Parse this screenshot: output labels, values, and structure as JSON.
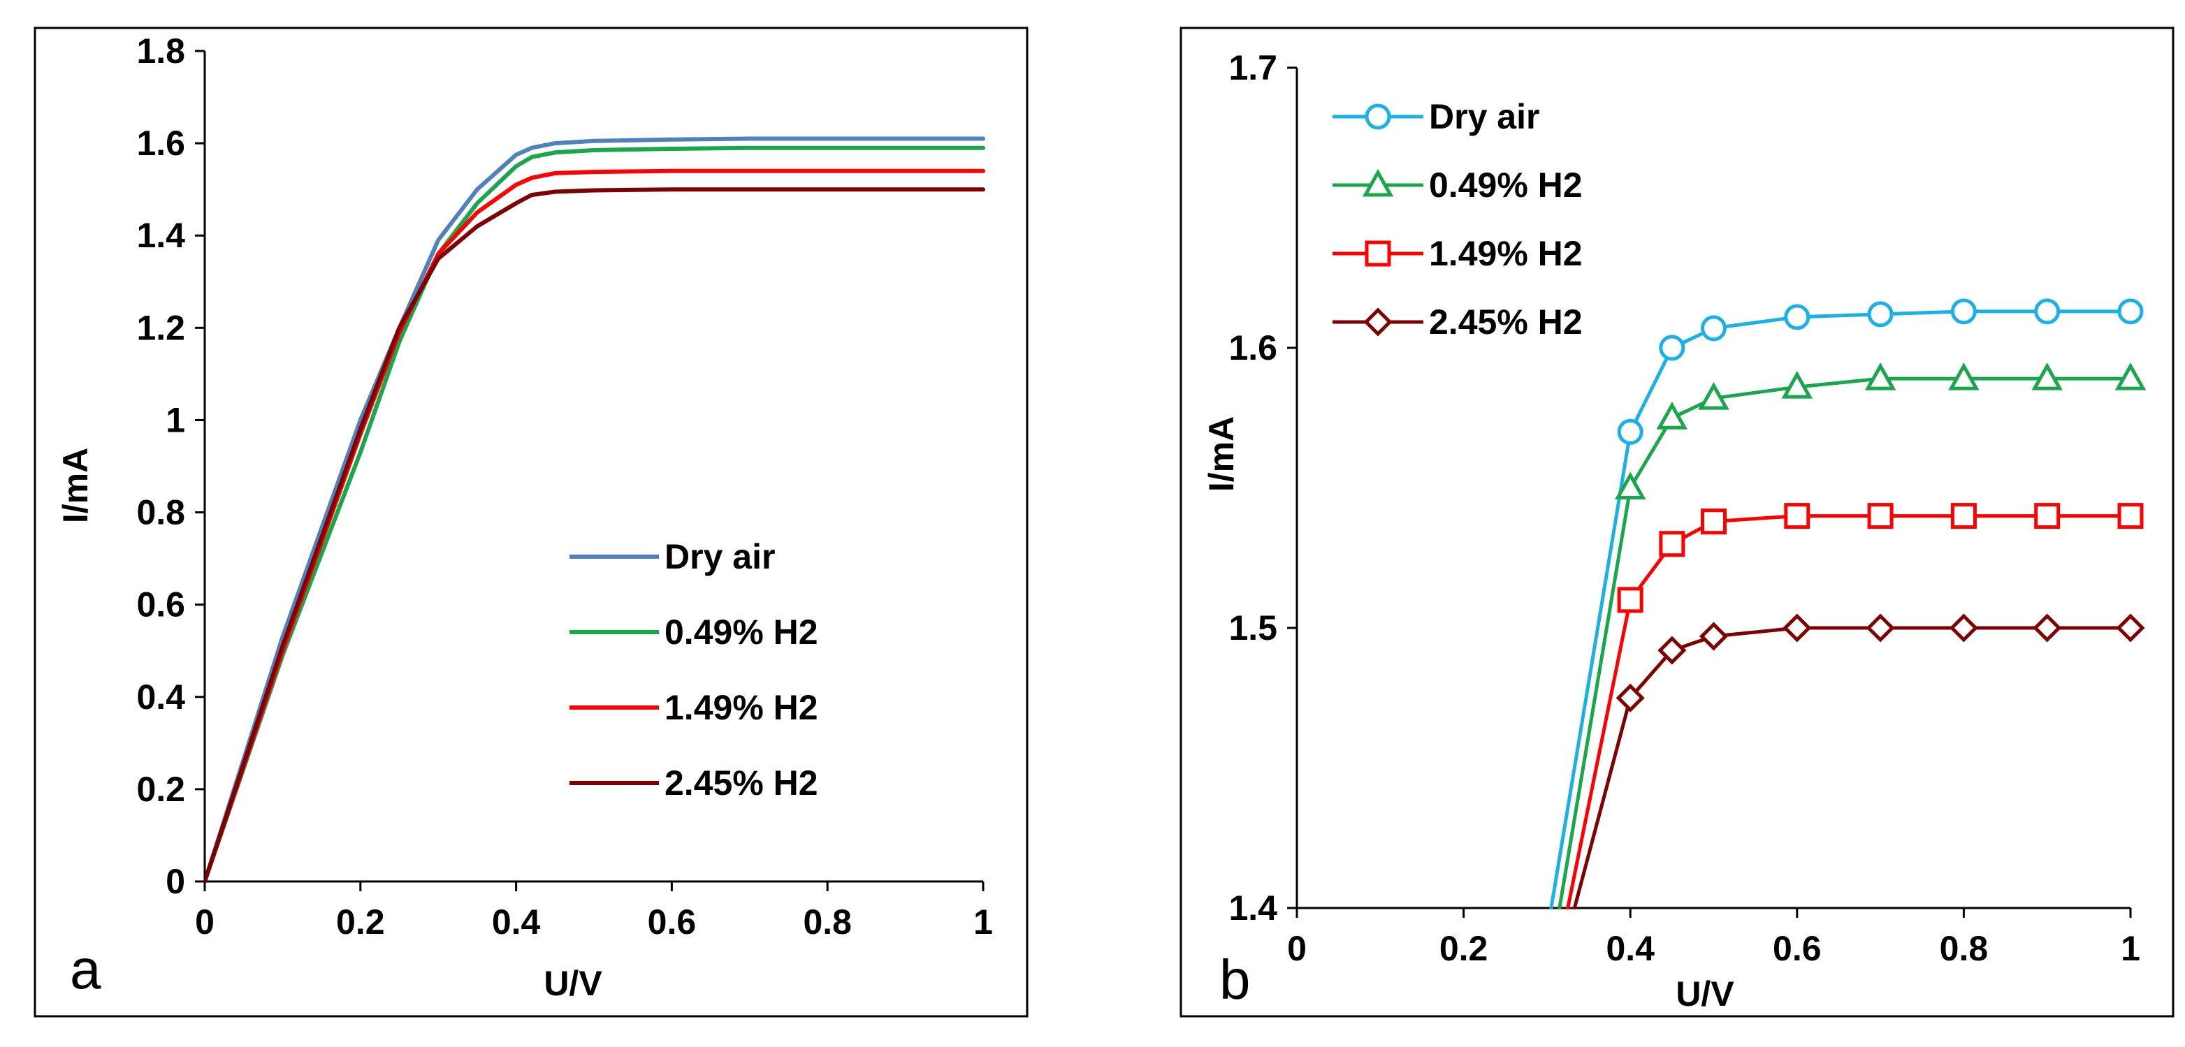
{
  "chart_data": [
    {
      "type": "line",
      "panel_label": "a",
      "xlabel": "U/V",
      "ylabel": "I/mA",
      "xlim": [
        0,
        1
      ],
      "ylim": [
        0,
        1.8
      ],
      "xticks": [
        "0",
        "0.2",
        "0.4",
        "0.6",
        "0.8",
        "1"
      ],
      "yticks": [
        "0",
        "0.2",
        "0.4",
        "0.6",
        "0.8",
        "1",
        "1.2",
        "1.4",
        "1.6",
        "1.8"
      ],
      "legend_position": "lower-right",
      "series": [
        {
          "name": "Dry  air",
          "color": "#4f81bd",
          "x": [
            0,
            0.1,
            0.2,
            0.25,
            0.3,
            0.35,
            0.4,
            0.42,
            0.45,
            0.5,
            0.6,
            0.7,
            0.8,
            0.9,
            1.0
          ],
          "y": [
            0,
            0.53,
            1.0,
            1.2,
            1.39,
            1.5,
            1.575,
            1.59,
            1.6,
            1.605,
            1.608,
            1.61,
            1.61,
            1.61,
            1.61
          ]
        },
        {
          "name": "0.49% H2",
          "color": "#1aa64b",
          "x": [
            0,
            0.1,
            0.2,
            0.25,
            0.3,
            0.35,
            0.4,
            0.42,
            0.45,
            0.5,
            0.6,
            0.7,
            0.8,
            0.9,
            1.0
          ],
          "y": [
            0,
            0.49,
            0.93,
            1.17,
            1.36,
            1.47,
            1.55,
            1.57,
            1.58,
            1.585,
            1.588,
            1.59,
            1.59,
            1.59,
            1.59
          ]
        },
        {
          "name": "1.49% H2",
          "color": "#ff0000",
          "x": [
            0,
            0.1,
            0.2,
            0.25,
            0.3,
            0.35,
            0.4,
            0.42,
            0.45,
            0.5,
            0.6,
            0.7,
            0.8,
            0.9,
            1.0
          ],
          "y": [
            0,
            0.5,
            0.97,
            1.19,
            1.36,
            1.45,
            1.51,
            1.525,
            1.535,
            1.538,
            1.54,
            1.54,
            1.54,
            1.54,
            1.54
          ]
        },
        {
          "name": "2.45% H2",
          "color": "#7f0000",
          "x": [
            0,
            0.1,
            0.2,
            0.25,
            0.3,
            0.35,
            0.4,
            0.42,
            0.45,
            0.5,
            0.6,
            0.7,
            0.8,
            0.9,
            1.0
          ],
          "y": [
            0,
            0.51,
            0.98,
            1.2,
            1.35,
            1.42,
            1.47,
            1.488,
            1.495,
            1.498,
            1.5,
            1.5,
            1.5,
            1.5,
            1.5
          ]
        }
      ]
    },
    {
      "type": "line",
      "panel_label": "b",
      "xlabel": "U/V",
      "ylabel": "I/mA",
      "xlim": [
        0,
        1
      ],
      "ylim": [
        1.4,
        1.7
      ],
      "xticks": [
        "0",
        "0.2",
        "0.4",
        "0.6",
        "0.8",
        "1"
      ],
      "yticks": [
        "1.4",
        "1.5",
        "1.6",
        "1.7"
      ],
      "legend_position": "top-left",
      "series": [
        {
          "name": "Dry air",
          "color": "#19b1e6",
          "marker": "circle",
          "x": [
            0.4,
            0.45,
            0.5,
            0.6,
            0.7,
            0.8,
            0.9,
            1.0
          ],
          "y": [
            1.57,
            1.6,
            1.607,
            1.611,
            1.612,
            1.613,
            1.613,
            1.613
          ],
          "entry": [
            0.305,
            1.4
          ]
        },
        {
          "name": "0.49% H2",
          "color": "#1aa64b",
          "marker": "triangle",
          "x": [
            0.4,
            0.45,
            0.5,
            0.6,
            0.7,
            0.8,
            0.9,
            1.0
          ],
          "y": [
            1.55,
            1.575,
            1.582,
            1.586,
            1.589,
            1.589,
            1.589,
            1.589
          ],
          "entry": [
            0.315,
            1.4
          ]
        },
        {
          "name": "1.49% H2",
          "color": "#ff0000",
          "marker": "square",
          "x": [
            0.4,
            0.45,
            0.5,
            0.6,
            0.7,
            0.8,
            0.9,
            1.0
          ],
          "y": [
            1.51,
            1.53,
            1.538,
            1.54,
            1.54,
            1.54,
            1.54,
            1.54
          ],
          "entry": [
            0.325,
            1.4
          ]
        },
        {
          "name": "2.45% H2",
          "color": "#7f0000",
          "marker": "diamond",
          "x": [
            0.4,
            0.45,
            0.5,
            0.6,
            0.7,
            0.8,
            0.9,
            1.0
          ],
          "y": [
            1.475,
            1.492,
            1.497,
            1.5,
            1.5,
            1.5,
            1.5,
            1.5
          ],
          "entry": [
            0.333,
            1.4
          ]
        }
      ]
    }
  ]
}
